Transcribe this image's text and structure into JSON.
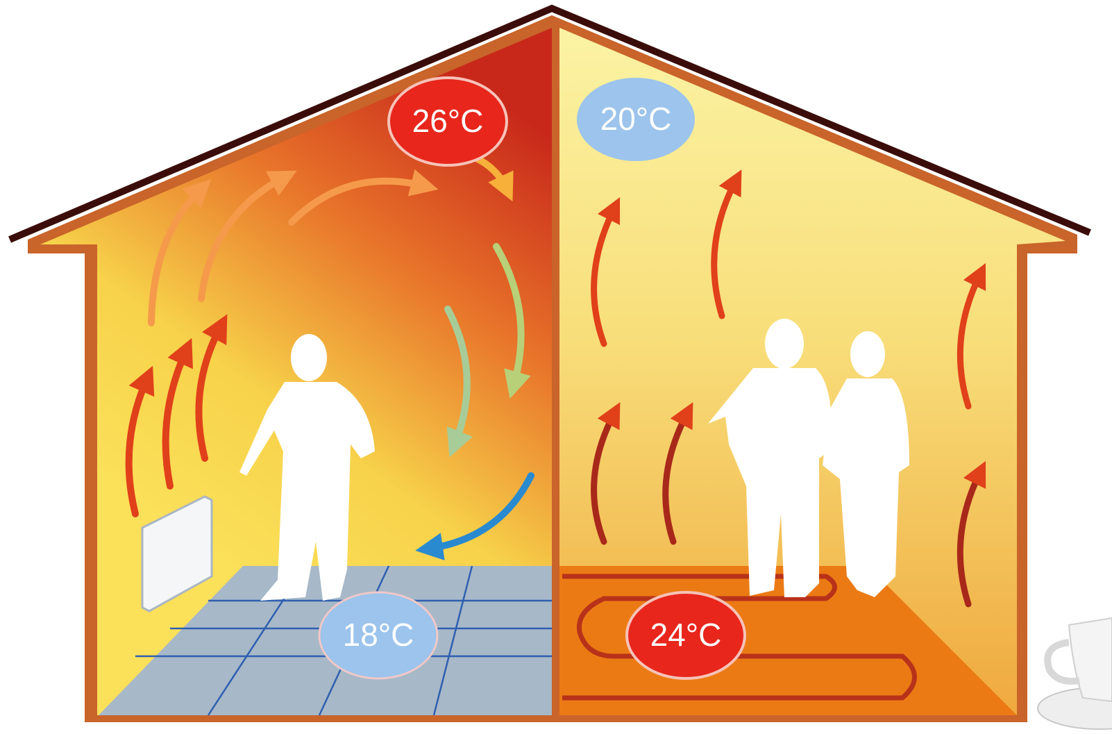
{
  "rooms": [
    {
      "ceiling": "26°C",
      "floor": "18°C"
    },
    {
      "ceiling": "20°C",
      "floor": "24°C"
    }
  ]
}
